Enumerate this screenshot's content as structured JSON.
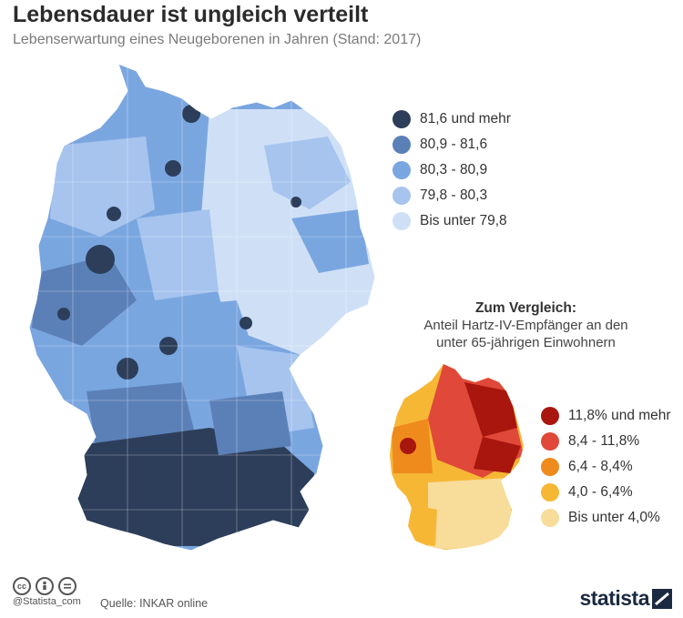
{
  "header": {
    "title": "Lebensdauer ist ungleich verteilt",
    "subtitle": "Lebenserwartung eines Neugeborenen in Jahren (Stand: 2017)"
  },
  "main_map": {
    "legend": [
      {
        "label": "81,6 und mehr",
        "color": "#2d3e5a"
      },
      {
        "label": "80,9 - 81,6",
        "color": "#5b80b8"
      },
      {
        "label": "80,3 - 80,9",
        "color": "#7aa6e0"
      },
      {
        "label": "79,8 - 80,3",
        "color": "#a6c4ee"
      },
      {
        "label": "Bis unter 79,8",
        "color": "#cfe0f6"
      }
    ]
  },
  "comparison": {
    "title": "Zum Vergleich:",
    "subtitle_line1": "Anteil Hartz-IV-Empfänger an den",
    "subtitle_line2": "unter 65-jährigen Einwohnern",
    "legend": [
      {
        "label": "11,8% und mehr",
        "color": "#a8160e"
      },
      {
        "label": "8,4 - 11,8%",
        "color": "#e0483a"
      },
      {
        "label": "6,4 - 8,4%",
        "color": "#ef8a1c"
      },
      {
        "label": "4,0 - 6,4%",
        "color": "#f6b735"
      },
      {
        "label": "Bis unter 4,0%",
        "color": "#f8dc9a"
      }
    ]
  },
  "footer": {
    "handle": "@Statista_com",
    "source": "Quelle: INKAR online",
    "logo": "statista",
    "license_icons": [
      "cc-icon",
      "by-icon",
      "nd-icon"
    ]
  }
}
